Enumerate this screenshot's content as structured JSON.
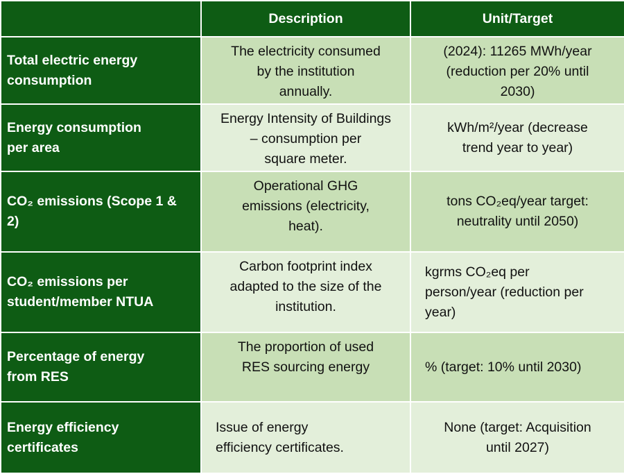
{
  "header": {
    "col1": "",
    "col2": "Description",
    "col3": "Unit/Target"
  },
  "rows": [
    {
      "indicator": "Total electric energy\nconsumption",
      "description": "The electricity consumed\nby the institution\nannually.",
      "unit": "(2024): 11265 MWh/year\n(reduction per 20% until\n2030)"
    },
    {
      "indicator": "Energy consumption\nper area",
      "description": "Energy Intensity of Buildings\n– consumption per\nsquare meter.",
      "unit": "kWh/m²/year (decrease\ntrend year to year)"
    },
    {
      "indicator": "CO₂ emissions (Scope 1 &\n2)",
      "description": "Operational GHG\nemissions (electricity,\nheat).",
      "unit": "tons CO₂eq/year target:\nneutrality until 2050)"
    },
    {
      "indicator": "CO₂ emissions per\nstudent/member NTUA",
      "description": "Carbon footprint index\nadapted to the size of the\ninstitution.",
      "unit": "kgrms CO₂eq per\nperson/year (reduction per\nyear)"
    },
    {
      "indicator": "Percentage of energy\nfrom RES",
      "description": "The proportion of used\nRES sourcing energy",
      "unit": "% (target: 10% until 2030)"
    },
    {
      "indicator": "Energy efficiency\ncertificates",
      "description": "Issue of energy\nefficiency certificates.",
      "unit": "None (target: Acquisition\nuntil 2027)"
    }
  ]
}
